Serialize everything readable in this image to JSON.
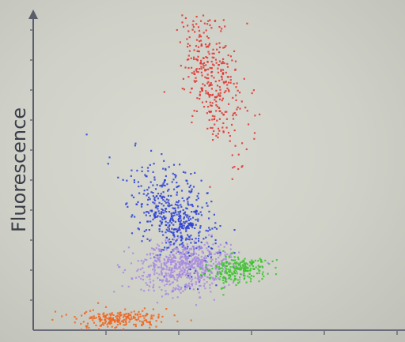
{
  "chart_data": {
    "type": "scatter",
    "title": "",
    "xlabel": "",
    "ylabel": "Fluorescence",
    "xlim": [
      0,
      100
    ],
    "ylim": [
      0,
      100
    ],
    "grid": false,
    "legend": "none",
    "series": [
      {
        "color": "#e0342f",
        "center": [
          48,
          80
        ],
        "spread": [
          3.5,
          13
        ],
        "count": 380,
        "tilt": -0.18
      },
      {
        "color": "#2b3fd6",
        "center": [
          38,
          36
        ],
        "spread": [
          5.0,
          8
        ],
        "count": 520,
        "tilt": -0.35
      },
      {
        "color": "#a98be0",
        "center": [
          41,
          20
        ],
        "spread": [
          6.5,
          4
        ],
        "count": 650,
        "tilt": 0.25
      },
      {
        "color": "#3ac42a",
        "center": [
          55,
          19
        ],
        "spread": [
          4.0,
          2.2
        ],
        "count": 230,
        "tilt": 0.35
      },
      {
        "color": "#f0641c",
        "center": [
          23,
          3.5
        ],
        "spread": [
          6.0,
          1.6
        ],
        "count": 230,
        "tilt": 0.3
      }
    ]
  }
}
